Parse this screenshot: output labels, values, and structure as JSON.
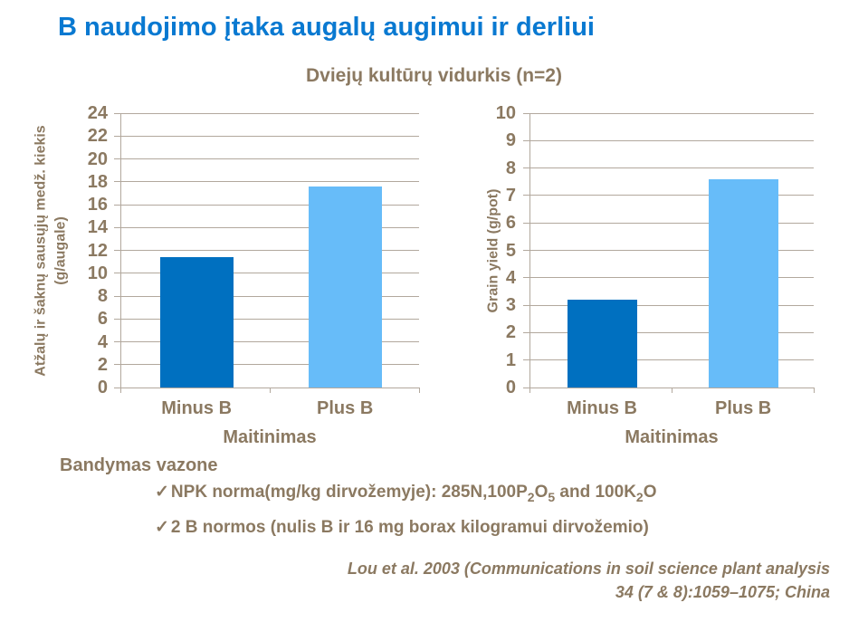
{
  "page": {
    "title": "B naudojimo įtaka augalų augimui ir derliui",
    "subtitle": "Dviejų kultūrų vidurkis (n=2)"
  },
  "colors": {
    "title_blue": "#0979D1",
    "text_taupe": "#8B7961",
    "gridline": "#B2A89D",
    "bar_dark_blue": "#0070C0",
    "bar_light_blue": "#67BCF9",
    "background": "#FFFFFF"
  },
  "chart_data": [
    {
      "type": "bar",
      "categories": [
        "Minus B",
        "Plus B"
      ],
      "values": [
        11.4,
        17.6
      ],
      "bar_colors": [
        "#0070C0",
        "#67BCF9"
      ],
      "xlabel": "Maitinimas",
      "ylabel_lines": [
        "Atžalų ir šaknų sausųjų medž. kiekis",
        "(g/augale)"
      ],
      "ylim": [
        0,
        24
      ],
      "ytick_step": 2,
      "grid": true,
      "legend": "none"
    },
    {
      "type": "bar",
      "categories": [
        "Minus B",
        "Plus B"
      ],
      "values": [
        3.2,
        7.6
      ],
      "bar_colors": [
        "#0070C0",
        "#67BCF9"
      ],
      "xlabel": "Maitinimas",
      "ylabel_lines": [
        "Grain yield (g/pot)"
      ],
      "ylim": [
        0,
        10
      ],
      "ytick_step": 1,
      "grid": true,
      "legend": "none"
    }
  ],
  "notes": {
    "heading": "Bandymas vazone",
    "check_glyph": "✓",
    "bullets": [
      {
        "parts": [
          {
            "t": "NPK norma(mg/kg dirvožemyje): 285N,100P"
          },
          {
            "t": "2",
            "sub": true
          },
          {
            "t": "O"
          },
          {
            "t": "5",
            "sub": true
          },
          {
            "t": " and 100K"
          },
          {
            "t": "2",
            "sub": true
          },
          {
            "t": "O"
          }
        ]
      },
      {
        "parts": [
          {
            "t": "2 B normos (nulis B ir 16 mg borax kilogramui dirvožemio)"
          }
        ]
      }
    ]
  },
  "citation": {
    "line1": "Lou et al. 2003 (Communications in soil science plant analysis",
    "line2": "34 (7 & 8):1059–1075; China"
  }
}
